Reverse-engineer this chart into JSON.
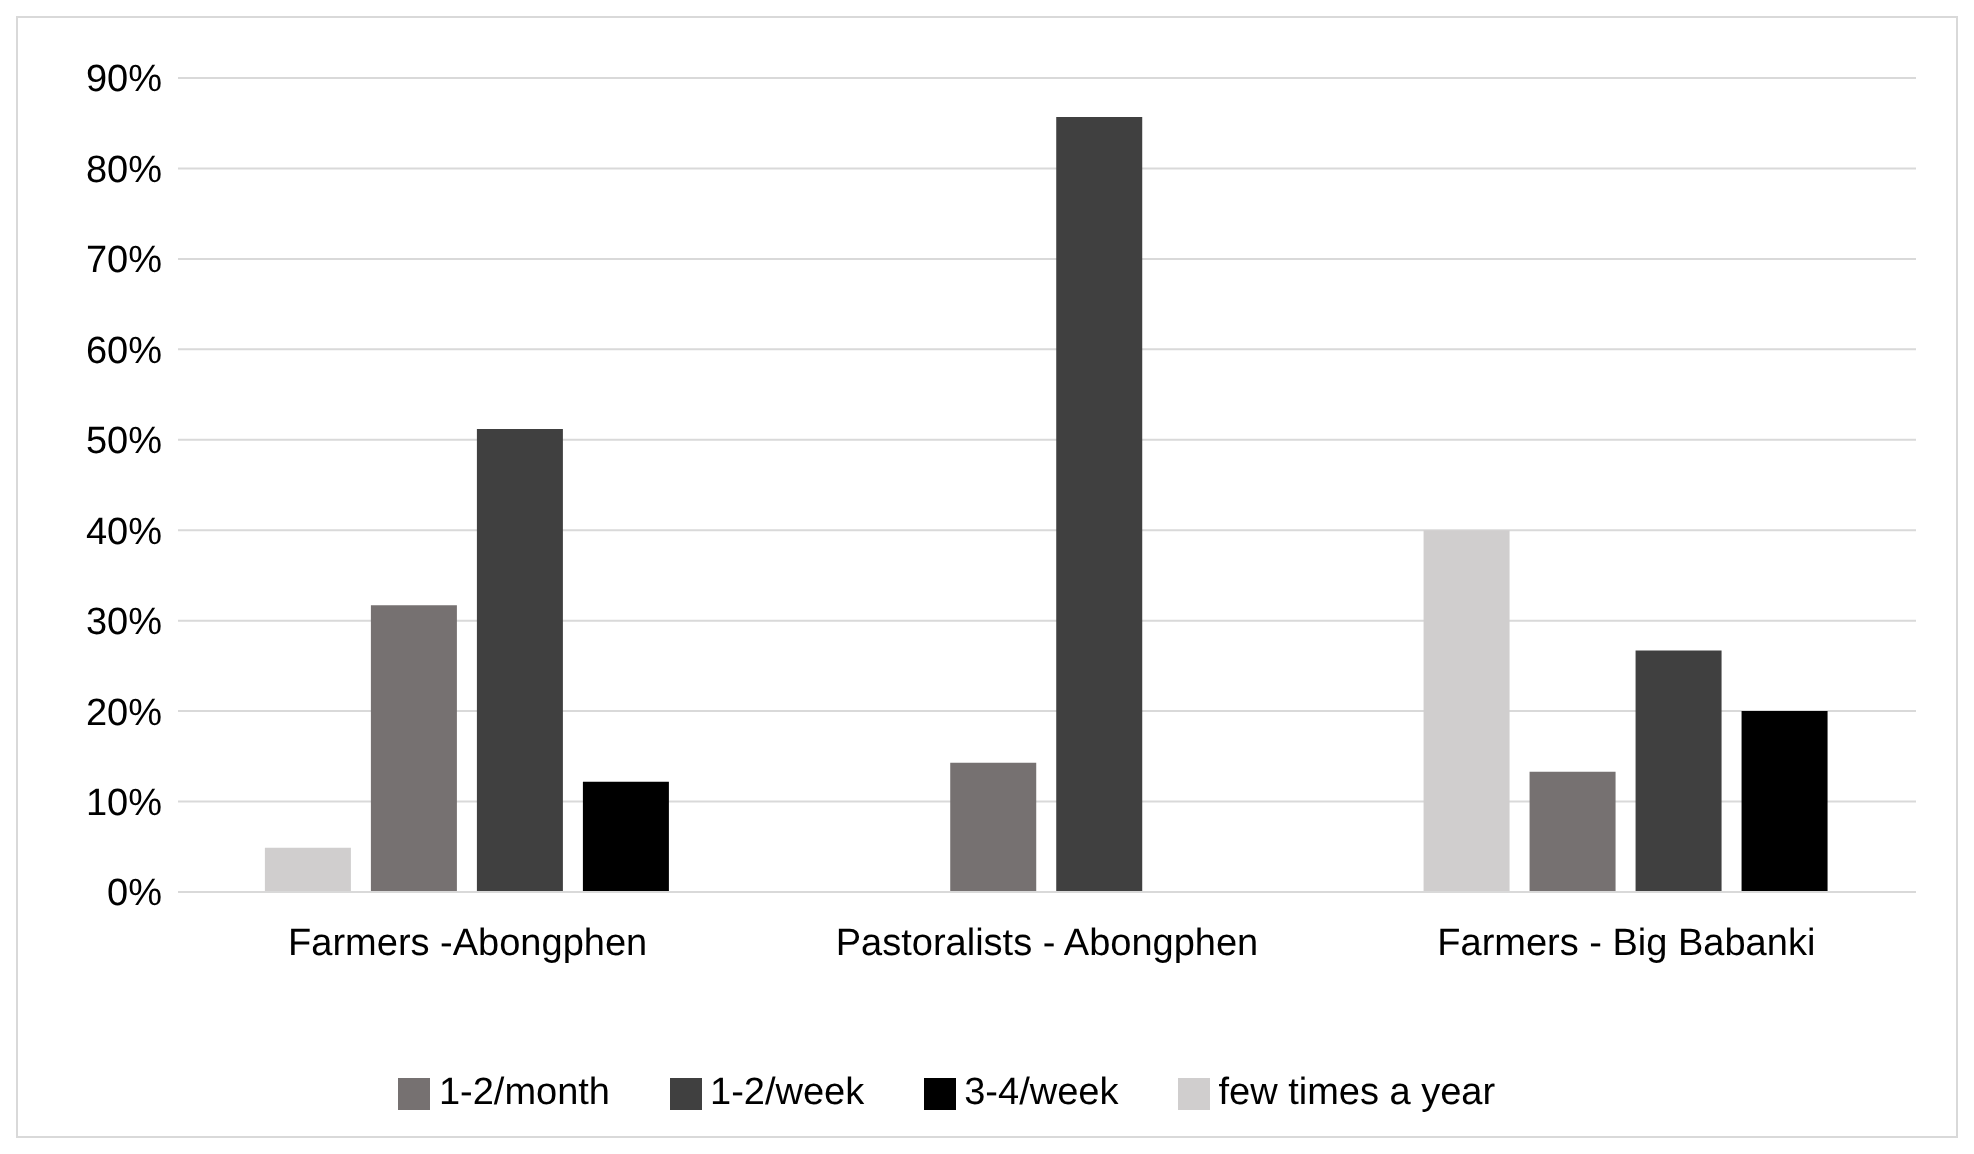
{
  "chart_data": {
    "type": "bar",
    "categories": [
      "Farmers -Abongphen",
      "Pastoralists - Abongphen",
      "Farmers - Big Babanki"
    ],
    "series": [
      {
        "name": "few times a year",
        "color": "#d0cece",
        "values": [
          4.9,
          0,
          40
        ]
      },
      {
        "name": "1-2/month",
        "color": "#767171",
        "values": [
          31.7,
          14.3,
          13.3
        ]
      },
      {
        "name": "1-2/week",
        "color": "#404040",
        "values": [
          51.2,
          85.7,
          26.7
        ]
      },
      {
        "name": "3-4/week",
        "color": "#000000",
        "values": [
          12.2,
          0,
          20
        ]
      }
    ],
    "ylim": [
      0,
      90
    ],
    "yticks": [
      {
        "value": 0,
        "label": "0%"
      },
      {
        "value": 10,
        "label": "10%"
      },
      {
        "value": 20,
        "label": "20%"
      },
      {
        "value": 30,
        "label": "30%"
      },
      {
        "value": 40,
        "label": "40%"
      },
      {
        "value": 50,
        "label": "50%"
      },
      {
        "value": 60,
        "label": "60%"
      },
      {
        "value": 70,
        "label": "70%"
      },
      {
        "value": 80,
        "label": "80%"
      },
      {
        "value": 90,
        "label": "90%"
      }
    ],
    "grid": "y",
    "legend": "bottom"
  }
}
